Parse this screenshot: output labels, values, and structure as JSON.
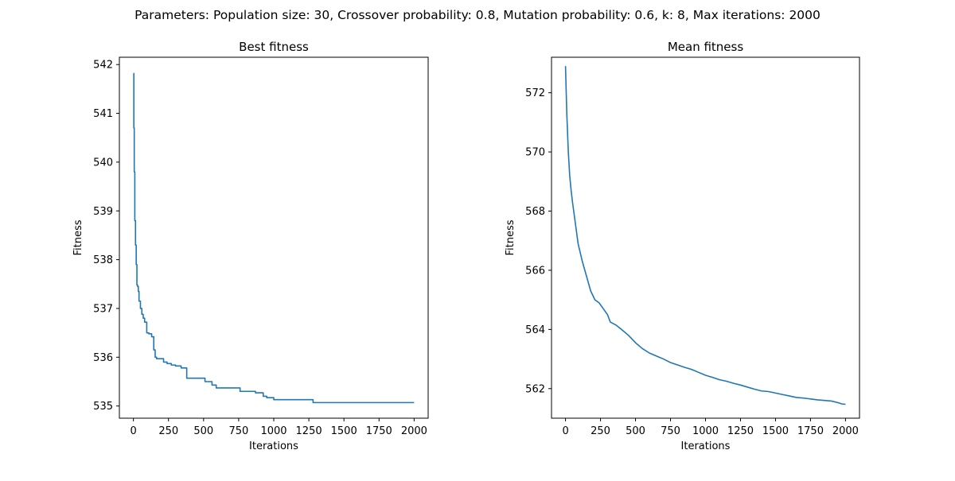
{
  "figure_title": "Parameters: Population size: 30, Crossover probability: 0.8, Mutation probability: 0.6, k: 8, Max iterations: 2000",
  "colors": {
    "line": "#1f77b4",
    "axes": "#000000",
    "background": "#ffffff"
  },
  "chart_data": [
    {
      "type": "line",
      "title": "Best fitness",
      "xlabel": "Iterations",
      "ylabel": "Fitness",
      "xlim": [
        -100,
        2100
      ],
      "ylim": [
        534.75,
        542.15
      ],
      "xticks": [
        0,
        250,
        500,
        750,
        1000,
        1250,
        1500,
        1750,
        2000
      ],
      "yticks": [
        535,
        536,
        537,
        538,
        539,
        540,
        541,
        542
      ],
      "grid": false,
      "step": true,
      "series": [
        {
          "x": [
            0,
            3,
            6,
            10,
            15,
            20,
            25,
            30,
            35,
            40,
            50,
            60,
            70,
            80,
            95,
            110,
            130,
            145,
            155,
            165,
            180,
            200,
            215,
            240,
            270,
            300,
            340,
            380,
            510,
            560,
            590,
            760,
            870,
            925,
            950,
            1000,
            1280,
            2000
          ],
          "y": [
            541.82,
            540.7,
            539.8,
            538.8,
            538.3,
            537.9,
            537.48,
            537.45,
            537.35,
            537.15,
            537.0,
            536.88,
            536.8,
            536.72,
            536.5,
            536.48,
            536.42,
            536.15,
            536.0,
            535.97,
            535.97,
            535.97,
            535.9,
            535.87,
            535.84,
            535.82,
            535.78,
            535.57,
            535.5,
            535.43,
            535.37,
            535.3,
            535.27,
            535.2,
            535.17,
            535.13,
            535.07,
            535.07
          ]
        }
      ]
    },
    {
      "type": "line",
      "title": "Mean fitness",
      "xlabel": "Iterations",
      "ylabel": "Fitness",
      "xlim": [
        -100,
        2100
      ],
      "ylim": [
        561.0,
        573.2
      ],
      "xticks": [
        0,
        250,
        500,
        750,
        1000,
        1250,
        1500,
        1750,
        2000
      ],
      "yticks": [
        562,
        564,
        566,
        568,
        570,
        572
      ],
      "grid": false,
      "step": false,
      "series": [
        {
          "x": [
            0,
            5,
            10,
            20,
            30,
            40,
            50,
            70,
            90,
            100,
            120,
            150,
            180,
            210,
            240,
            270,
            300,
            320,
            340,
            360,
            400,
            450,
            500,
            550,
            600,
            650,
            700,
            750,
            800,
            850,
            900,
            950,
            1000,
            1050,
            1100,
            1150,
            1200,
            1250,
            1300,
            1350,
            1400,
            1450,
            1500,
            1550,
            1600,
            1650,
            1700,
            1750,
            1800,
            1850,
            1900,
            1950,
            1975,
            2000
          ],
          "y": [
            572.9,
            572.0,
            571.2,
            570.0,
            569.2,
            568.7,
            568.3,
            567.6,
            566.9,
            566.7,
            566.3,
            565.8,
            565.3,
            565.0,
            564.9,
            564.7,
            564.5,
            564.25,
            564.2,
            564.15,
            564.0,
            563.8,
            563.55,
            563.35,
            563.2,
            563.1,
            563.0,
            562.88,
            562.8,
            562.72,
            562.65,
            562.55,
            562.45,
            562.38,
            562.3,
            562.25,
            562.18,
            562.12,
            562.05,
            561.98,
            561.92,
            561.9,
            561.85,
            561.8,
            561.75,
            561.7,
            561.68,
            561.65,
            561.62,
            561.6,
            561.58,
            561.52,
            561.48,
            561.47
          ]
        }
      ]
    }
  ]
}
